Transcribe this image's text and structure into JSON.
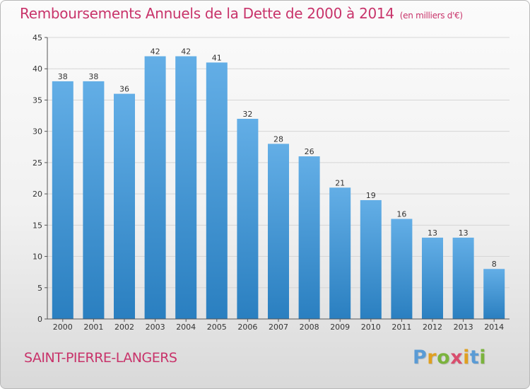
{
  "page": {
    "title": "Remboursements Annuels de la Dette de 2000 à 2014",
    "unit": "(en milliers d'€)",
    "commune": "SAINT-PIERRE-LANGERS",
    "brand": "Proxiti"
  },
  "brand_letters": [
    {
      "ch": "P",
      "color": "#5a9bd5"
    },
    {
      "ch": "r",
      "color": "#e0a020"
    },
    {
      "ch": "o",
      "color": "#7bb33d"
    },
    {
      "ch": "x",
      "color": "#d94e6e"
    },
    {
      "ch": "i",
      "color": "#e0a020"
    },
    {
      "ch": "t",
      "color": "#5a9bd5"
    },
    {
      "ch": "i",
      "color": "#7bb33d"
    }
  ],
  "colors": {
    "bar_top": "#63aee6",
    "bar_bottom": "#2a7fc0",
    "accent": "#c8336a",
    "grid": "#d6d6d6",
    "axis": "#555555"
  },
  "chart_data": {
    "type": "bar",
    "title": "Remboursements Annuels de la Dette de 2000 à 2014",
    "subtitle": "(en milliers d'€)",
    "xlabel": "",
    "ylabel": "",
    "categories": [
      "2000",
      "2001",
      "2002",
      "2003",
      "2004",
      "2005",
      "2006",
      "2007",
      "2008",
      "2009",
      "2010",
      "2011",
      "2012",
      "2013",
      "2014"
    ],
    "values": [
      38,
      38,
      36,
      42,
      42,
      41,
      32,
      28,
      26,
      21,
      19,
      16,
      13,
      13,
      8
    ],
    "ylim": [
      0,
      45
    ],
    "yticks": [
      0,
      5,
      10,
      15,
      20,
      25,
      30,
      35,
      40,
      45
    ],
    "grid": true,
    "data_labels": true
  }
}
